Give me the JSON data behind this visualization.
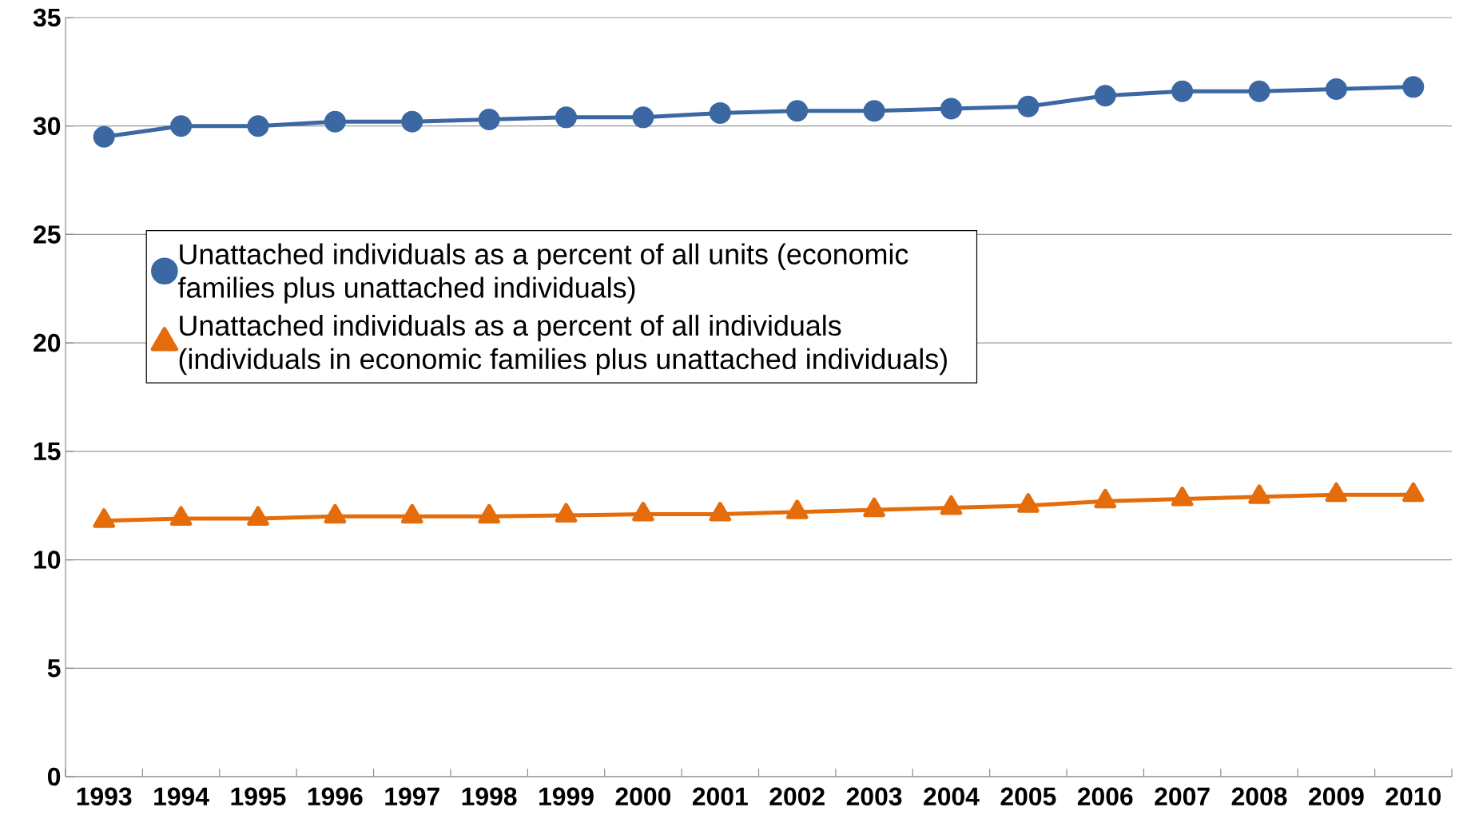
{
  "chart_data": {
    "type": "line",
    "categories": [
      "1993",
      "1994",
      "1995",
      "1996",
      "1997",
      "1998",
      "1999",
      "2000",
      "2001",
      "2002",
      "2003",
      "2004",
      "2005",
      "2006",
      "2007",
      "2008",
      "2009",
      "2010"
    ],
    "series": [
      {
        "name": "Unattached individuals as a percent of all units (economic families plus unattached individuals)",
        "color": "#3b67a3",
        "marker": "circle",
        "values": [
          29.5,
          30.0,
          30.0,
          30.2,
          30.2,
          30.3,
          30.4,
          30.4,
          30.6,
          30.7,
          30.7,
          30.8,
          30.9,
          31.4,
          31.6,
          31.6,
          31.7,
          31.8
        ]
      },
      {
        "name": "Unattached individuals as a percent of all individuals (individuals in economic families plus unattached individuals)",
        "color": "#e46c0a",
        "marker": "triangle",
        "values": [
          11.8,
          11.9,
          11.9,
          12.0,
          12.0,
          12.0,
          12.05,
          12.1,
          12.1,
          12.2,
          12.3,
          12.4,
          12.5,
          12.7,
          12.8,
          12.9,
          13.0,
          13.0
        ]
      }
    ],
    "ylim": [
      0,
      35
    ],
    "yticks": [
      0,
      5,
      10,
      15,
      20,
      25,
      30,
      35
    ],
    "grid": "y",
    "legend": "top left",
    "line_style": "solid"
  }
}
